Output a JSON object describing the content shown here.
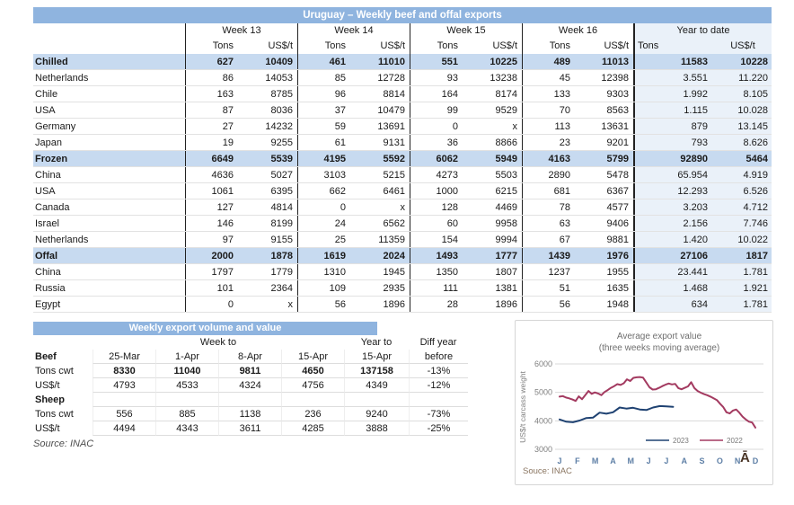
{
  "table1": {
    "title": "Uruguay – Weekly beef and offal exports",
    "week_headers": [
      "Week 13",
      "Week 14",
      "Week 15",
      "Week 16"
    ],
    "ytd_header": "Year to date",
    "sub_tons": "Tons",
    "sub_usd": "US$/t",
    "rows": [
      {
        "label": "Chilled",
        "section": true,
        "cells": [
          "627",
          "10409",
          "461",
          "11010",
          "551",
          "10225",
          "489",
          "11013",
          "11583",
          "10228"
        ]
      },
      {
        "label": "Netherlands",
        "section": false,
        "cells": [
          "86",
          "14053",
          "85",
          "12728",
          "93",
          "13238",
          "45",
          "12398",
          "3.551",
          "11.220"
        ]
      },
      {
        "label": "Chile",
        "section": false,
        "cells": [
          "163",
          "8785",
          "96",
          "8814",
          "164",
          "8174",
          "133",
          "9303",
          "1.992",
          "8.105"
        ]
      },
      {
        "label": "USA",
        "section": false,
        "cells": [
          "87",
          "8036",
          "37",
          "10479",
          "99",
          "9529",
          "70",
          "8563",
          "1.115",
          "10.028"
        ]
      },
      {
        "label": "Germany",
        "section": false,
        "cells": [
          "27",
          "14232",
          "59",
          "13691",
          "0",
          "x",
          "113",
          "13631",
          "879",
          "13.145"
        ]
      },
      {
        "label": "Japan",
        "section": false,
        "cells": [
          "19",
          "9255",
          "61",
          "9131",
          "36",
          "8866",
          "23",
          "9201",
          "793",
          "8.626"
        ]
      },
      {
        "label": "Frozen",
        "section": true,
        "cells": [
          "6649",
          "5539",
          "4195",
          "5592",
          "6062",
          "5949",
          "4163",
          "5799",
          "92890",
          "5464"
        ]
      },
      {
        "label": "China",
        "section": false,
        "cells": [
          "4636",
          "5027",
          "3103",
          "5215",
          "4273",
          "5503",
          "2890",
          "5478",
          "65.954",
          "4.919"
        ]
      },
      {
        "label": "USA",
        "section": false,
        "cells": [
          "1061",
          "6395",
          "662",
          "6461",
          "1000",
          "6215",
          "681",
          "6367",
          "12.293",
          "6.526"
        ]
      },
      {
        "label": "Canada",
        "section": false,
        "cells": [
          "127",
          "4814",
          "0",
          "x",
          "128",
          "4469",
          "78",
          "4577",
          "3.203",
          "4.712"
        ]
      },
      {
        "label": "Israel",
        "section": false,
        "cells": [
          "146",
          "8199",
          "24",
          "6562",
          "60",
          "9958",
          "63",
          "9406",
          "2.156",
          "7.746"
        ]
      },
      {
        "label": "Netherlands",
        "section": false,
        "cells": [
          "97",
          "9155",
          "25",
          "11359",
          "154",
          "9994",
          "67",
          "9881",
          "1.420",
          "10.022"
        ]
      },
      {
        "label": "Offal",
        "section": true,
        "cells": [
          "2000",
          "1878",
          "1619",
          "2024",
          "1493",
          "1777",
          "1439",
          "1976",
          "27106",
          "1817"
        ]
      },
      {
        "label": "China",
        "section": false,
        "cells": [
          "1797",
          "1779",
          "1310",
          "1945",
          "1350",
          "1807",
          "1237",
          "1955",
          "23.441",
          "1.781"
        ]
      },
      {
        "label": "Russia",
        "section": false,
        "cells": [
          "101",
          "2364",
          "109",
          "2935",
          "111",
          "1381",
          "51",
          "1635",
          "1.468",
          "1.921"
        ]
      },
      {
        "label": "Egypt",
        "section": false,
        "cells": [
          "0",
          "x",
          "56",
          "1896",
          "28",
          "1896",
          "56",
          "1948",
          "634",
          "1.781"
        ]
      }
    ]
  },
  "table2": {
    "title": "Weekly export volume and value",
    "week_to_label": "Week to",
    "year_to_label": "Year to",
    "diff_label": "Diff year",
    "header_row": [
      "Beef",
      "25-Mar",
      "1-Apr",
      "8-Apr",
      "15-Apr",
      "15-Apr",
      "before"
    ],
    "rows": [
      {
        "label": "Tons cwt",
        "label_bold": false,
        "values_bold": true,
        "values": [
          "8330",
          "11040",
          "9811",
          "4650",
          "137158",
          "-13%"
        ]
      },
      {
        "label": "US$/t",
        "label_bold": false,
        "values_bold": false,
        "values": [
          "4793",
          "4533",
          "4324",
          "4756",
          "4349",
          "-12%"
        ]
      },
      {
        "label": "Sheep",
        "label_bold": true,
        "values_bold": false,
        "values": [
          "",
          "",
          "",
          "",
          "",
          ""
        ]
      },
      {
        "label": "Tons cwt",
        "label_bold": false,
        "values_bold": false,
        "values": [
          "556",
          "885",
          "1138",
          "236",
          "9240",
          "-73%"
        ]
      },
      {
        "label": "US$/t",
        "label_bold": false,
        "values_bold": false,
        "values": [
          "4494",
          "4343",
          "3611",
          "4285",
          "3888",
          "-25%"
        ]
      }
    ],
    "source": "Source: INAC"
  },
  "chart_data": {
    "type": "line",
    "title": "Average export  value",
    "subtitle": "(three weeks moving average)",
    "ylabel": "US$/t carcass weight",
    "yticks": [
      6000,
      5000,
      4000,
      3000
    ],
    "ylim": [
      3000,
      6000
    ],
    "months": [
      "J",
      "F",
      "M",
      "A",
      "M",
      "J",
      "J",
      "A",
      "S",
      "O",
      "N",
      "D"
    ],
    "grid": true,
    "legend_position": "inside-bottom",
    "source": "Souce: INAC",
    "series": [
      {
        "name": "2023",
        "color": "#1F4272",
        "x_extent": [
          0,
          0.58
        ],
        "values": [
          4050,
          3970,
          3950,
          4010,
          4100,
          4110,
          4290,
          4250,
          4300,
          4470,
          4430,
          4460,
          4400,
          4380,
          4470,
          4520,
          4510,
          4490
        ]
      },
      {
        "name": "2022",
        "color": "#A33A60",
        "x_extent": [
          0,
          1
        ],
        "values": [
          4850,
          4870,
          4820,
          4790,
          4750,
          4700,
          4860,
          4760,
          4900,
          5050,
          4950,
          5000,
          4960,
          4900,
          5010,
          5080,
          5160,
          5220,
          5290,
          5260,
          5320,
          5460,
          5400,
          5510,
          5530,
          5540,
          5520,
          5350,
          5180,
          5100,
          5110,
          5160,
          5220,
          5270,
          5310,
          5280,
          5300,
          5150,
          5110,
          5160,
          5210,
          5360,
          5150,
          5050,
          4990,
          4940,
          4900,
          4850,
          4790,
          4730,
          4600,
          4480,
          4300,
          4260,
          4360,
          4400,
          4290,
          4150,
          4050,
          3970,
          3940,
          3760
        ]
      }
    ]
  },
  "colors": {
    "band_blue": "#8FB4DF",
    "section_blue": "#C7DAF0",
    "ytd_tint": "#EAF1F9",
    "grid_gray": "#d9d9d9",
    "axis_text": "#7f7f7f",
    "month_text": "#5E7FA6",
    "chart_source_text": "#8a7560"
  },
  "stray_glyph": "Ā"
}
